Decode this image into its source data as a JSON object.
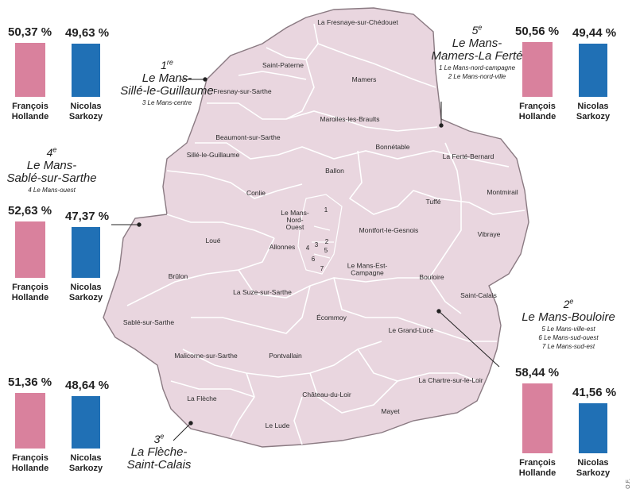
{
  "cantons": [
    "La Fresnaye-sur-Chédouet",
    "Saint-Paterne",
    "Mamers",
    "Fresnay-sur-Sarthe",
    "Marolles-les-Braults",
    "Beaumont-sur-Sarthe",
    "Bonnétable",
    "La Ferté-Bernard",
    "Sillé-le-Guillaume",
    "Ballon",
    "Conlie",
    "Montmirail",
    "Tuffé",
    "Le Mans-Nord-Ouest",
    "Montfort-le-Gesnois",
    "Vibraye",
    "Loué",
    "Allonnes",
    "Le Mans-Est-Campagne",
    "Brûlon",
    "Bouloire",
    "Saint-Calais",
    "La Suze-sur-Sarthe",
    "Sablé-sur-Sarthe",
    "Écommoy",
    "Le Grand-Lucé",
    "Malicorne-sur-Sarthe",
    "Pontvallain",
    "La Chartre-sur-le-Loir",
    "La Flèche",
    "Château-du-Loir",
    "Mayet",
    "Le Lude"
  ],
  "numbers": [
    "1",
    "2",
    "3",
    "4",
    "5",
    "6",
    "7"
  ],
  "circonscriptions": {
    "c1": {
      "ord": "1",
      "sup": "re",
      "name": "Le Mans-\nSillé-le-Guillaume",
      "sub": [
        "3 Le Mans-centre"
      ]
    },
    "c2": {
      "ord": "2",
      "sup": "e",
      "name": "Le Mans-Bouloire",
      "sub": [
        "5 Le Mans-ville-est",
        "6 Le Mans-sud-ouest",
        "7 Le Mans-sud-est"
      ]
    },
    "c3": {
      "ord": "3",
      "sup": "e",
      "name": "La Flèche-\nSaint-Calais",
      "sub": []
    },
    "c4": {
      "ord": "4",
      "sup": "e",
      "name": "Le Mans-\nSablé-sur-Sarthe",
      "sub": [
        "4 Le Mans-ouest"
      ]
    },
    "c5": {
      "ord": "5",
      "sup": "e",
      "name": "Le Mans-\nMamers-La Ferté",
      "sub": [
        "1 Le Mans-nord-campagne",
        "2 Le Mans-nord-ville"
      ]
    }
  },
  "candidates": {
    "hollande": "François\nHollande",
    "sarkozy": "Nicolas\nSarkozy"
  },
  "results": {
    "c1": {
      "hollande": "50,37 %",
      "sarkozy": "49,63 %",
      "h_value": 50.37,
      "s_value": 49.63
    },
    "c4": {
      "hollande": "52,63 %",
      "sarkozy": "47,37 %",
      "h_value": 52.63,
      "s_value": 47.37
    },
    "c3": {
      "hollande": "51,36 %",
      "sarkozy": "48,64 %",
      "h_value": 51.36,
      "s_value": 48.64
    },
    "c5": {
      "hollande": "50,56 %",
      "sarkozy": "49,44 %",
      "h_value": 50.56,
      "s_value": 49.44
    },
    "c2": {
      "hollande": "58,44 %",
      "sarkozy": "41,56 %",
      "h_value": 58.44,
      "s_value": 41.56
    }
  },
  "colors": {
    "map_fill": "#e9d6df",
    "border": "#ffffff",
    "outline": "#8a7a82",
    "hollande": "#d9819d",
    "sarkozy": "#2070b5"
  },
  "credit": "O.F."
}
